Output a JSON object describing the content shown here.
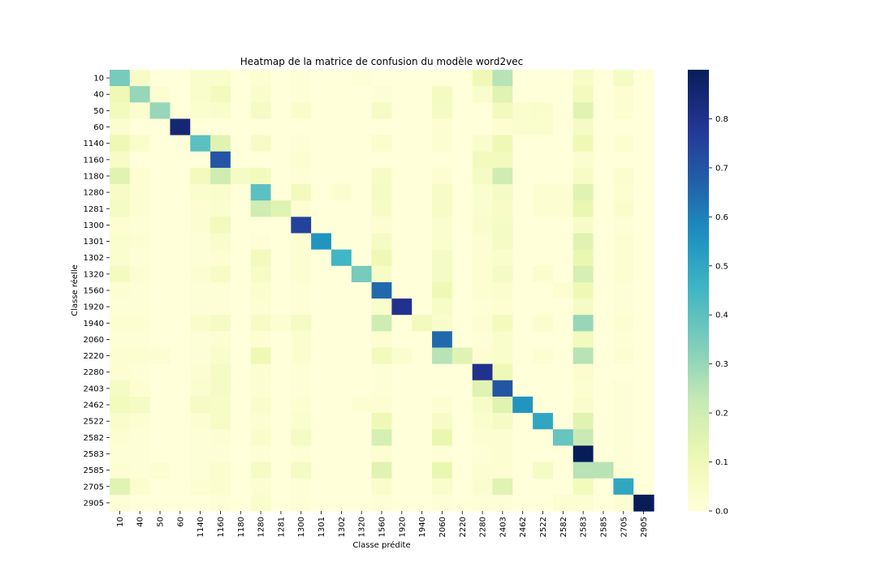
{
  "chart_data": {
    "type": "heatmap",
    "title": "Heatmap de la matrice de confusion du modèle word2vec",
    "xlabel": "Classe prédite",
    "ylabel": "Classe réelle",
    "classes": [
      "10",
      "40",
      "50",
      "60",
      "1140",
      "1160",
      "1180",
      "1280",
      "1281",
      "1300",
      "1301",
      "1302",
      "1320",
      "1560",
      "1920",
      "1940",
      "2060",
      "2220",
      "2280",
      "2403",
      "2462",
      "2522",
      "2582",
      "2583",
      "2585",
      "2705",
      "2905"
    ],
    "x_tick_labels": [
      "10",
      "40",
      "50",
      "60",
      "1140",
      "1160",
      "1180",
      "1280",
      "1281",
      "1300",
      "1301",
      "1302",
      "1320",
      "1560",
      "1920",
      "1940",
      "2060",
      "2220",
      "2280",
      "2403",
      "2462",
      "2522",
      "2582",
      "2583",
      "2585",
      "2705",
      "2905"
    ],
    "y_tick_labels": [
      "10",
      "40",
      "50",
      "60",
      "1140",
      "1160",
      "1180",
      "1280",
      "1281",
      "1300",
      "1301",
      "1302",
      "1320",
      "1560",
      "1920",
      "1940",
      "2060",
      "2220",
      "2280",
      "2403",
      "2462",
      "2522",
      "2582",
      "2583",
      "2585",
      "2705",
      "2905"
    ],
    "colormap": "YlGnBu",
    "color_range": [
      0.0,
      0.9
    ],
    "colorbar_ticks": [
      "0.0",
      "0.1",
      "0.2",
      "0.3",
      "0.4",
      "0.5",
      "0.6",
      "0.7",
      "0.8"
    ],
    "colorbar_tick_values": [
      0.0,
      0.1,
      0.2,
      0.3,
      0.4,
      0.5,
      0.6,
      0.7,
      0.8
    ],
    "matrix": [
      [
        0.35,
        0.05,
        0,
        0,
        0.04,
        0.04,
        0,
        0.02,
        0,
        0.01,
        0,
        0,
        0.01,
        0,
        0,
        0,
        0,
        0,
        0.1,
        0.25,
        0,
        0,
        0,
        0.05,
        0,
        0.06,
        0
      ],
      [
        0.1,
        0.3,
        0.02,
        0,
        0.04,
        0.08,
        0,
        0.04,
        0,
        0.01,
        0,
        0,
        0,
        0.01,
        0,
        0,
        0.07,
        0,
        0.04,
        0.15,
        0,
        0,
        0,
        0.08,
        0,
        0.02,
        0
      ],
      [
        0.08,
        0.03,
        0.3,
        0,
        0.03,
        0.04,
        0,
        0.06,
        0,
        0.04,
        0,
        0,
        0,
        0.06,
        0,
        0,
        0.06,
        0,
        0,
        0.08,
        0.03,
        0.04,
        0,
        0.15,
        0,
        0.02,
        0
      ],
      [
        0.03,
        0,
        0,
        0.85,
        0,
        0,
        0,
        0,
        0,
        0,
        0,
        0,
        0,
        0,
        0,
        0,
        0.02,
        0,
        0,
        0.02,
        0.03,
        0.03,
        0,
        0.06,
        0,
        0,
        0
      ],
      [
        0.1,
        0.04,
        0,
        0,
        0.4,
        0.15,
        0,
        0.05,
        0,
        0.01,
        0,
        0,
        0,
        0.03,
        0,
        0,
        0.02,
        0,
        0.04,
        0.1,
        0,
        0,
        0,
        0.1,
        0,
        0.02,
        0
      ],
      [
        0.05,
        0,
        0,
        0,
        0,
        0.7,
        0,
        0,
        0,
        0.02,
        0,
        0,
        0,
        0,
        0,
        0,
        0,
        0,
        0.08,
        0.08,
        0,
        0,
        0,
        0.03,
        0,
        0,
        0
      ],
      [
        0.15,
        0.02,
        0,
        0,
        0.08,
        0.2,
        0.06,
        0.08,
        0,
        0.01,
        0,
        0,
        0,
        0.05,
        0,
        0,
        0.02,
        0,
        0.06,
        0.2,
        0,
        0,
        0,
        0.05,
        0,
        0.03,
        0
      ],
      [
        0.05,
        0.02,
        0,
        0,
        0.03,
        0.04,
        0,
        0.4,
        0,
        0.08,
        0,
        0.03,
        0,
        0.06,
        0,
        0,
        0.05,
        0,
        0.03,
        0.06,
        0,
        0.02,
        0.02,
        0.15,
        0,
        0.02,
        0
      ],
      [
        0.06,
        0.02,
        0,
        0,
        0.02,
        0.03,
        0,
        0.2,
        0.15,
        0.02,
        0,
        0,
        0,
        0.05,
        0,
        0,
        0.05,
        0,
        0.03,
        0.05,
        0,
        0.02,
        0.02,
        0.12,
        0,
        0.04,
        0
      ],
      [
        0.02,
        0.01,
        0,
        0,
        0.02,
        0.08,
        0,
        0,
        0,
        0.75,
        0,
        0,
        0,
        0.02,
        0,
        0,
        0.03,
        0,
        0.04,
        0.06,
        0,
        0,
        0,
        0.05,
        0,
        0.01,
        0
      ],
      [
        0.03,
        0.02,
        0,
        0,
        0.01,
        0.04,
        0,
        0.01,
        0,
        0.02,
        0.55,
        0,
        0,
        0.06,
        0,
        0,
        0.03,
        0,
        0.02,
        0.06,
        0,
        0,
        0,
        0.15,
        0,
        0.02,
        0
      ],
      [
        0.03,
        0.01,
        0,
        0,
        0.01,
        0.02,
        0,
        0.08,
        0,
        0.02,
        0,
        0.45,
        0,
        0.1,
        0,
        0,
        0.06,
        0,
        0.02,
        0.04,
        0,
        0,
        0,
        0.12,
        0,
        0.02,
        0
      ],
      [
        0.07,
        0.02,
        0,
        0,
        0.02,
        0.05,
        0,
        0.05,
        0,
        0.02,
        0,
        0,
        0.35,
        0.05,
        0,
        0,
        0.06,
        0,
        0.02,
        0.06,
        0,
        0.03,
        0,
        0.18,
        0,
        0.02,
        0
      ],
      [
        0.02,
        0.01,
        0,
        0,
        0.01,
        0.01,
        0,
        0.03,
        0,
        0.01,
        0,
        0,
        0,
        0.65,
        0,
        0,
        0.1,
        0,
        0.02,
        0.03,
        0,
        0,
        0.02,
        0.1,
        0,
        0.01,
        0
      ],
      [
        0.01,
        0.01,
        0,
        0,
        0.01,
        0.01,
        0,
        0.02,
        0,
        0.01,
        0,
        0,
        0,
        0.04,
        0.8,
        0,
        0.05,
        0,
        0.01,
        0.02,
        0,
        0,
        0,
        0.06,
        0,
        0.01,
        0
      ],
      [
        0.02,
        0.02,
        0,
        0,
        0.04,
        0.06,
        0,
        0.05,
        0.02,
        0.06,
        0,
        0,
        0,
        0.2,
        0,
        0.08,
        0.04,
        0,
        0.02,
        0.08,
        0,
        0.03,
        0,
        0.3,
        0,
        0.02,
        0
      ],
      [
        0.01,
        0.01,
        0,
        0,
        0.01,
        0.02,
        0,
        0.02,
        0,
        0.03,
        0,
        0,
        0,
        0.02,
        0,
        0,
        0.65,
        0,
        0.01,
        0.04,
        0,
        0,
        0,
        0.08,
        0,
        0.01,
        0
      ],
      [
        0.02,
        0.02,
        0.02,
        0,
        0.01,
        0.04,
        0,
        0.1,
        0,
        0.03,
        0,
        0,
        0,
        0.08,
        0.03,
        0,
        0.25,
        0.15,
        0.02,
        0.04,
        0,
        0.02,
        0,
        0.25,
        0,
        0.02,
        0
      ],
      [
        0.02,
        0.01,
        0,
        0,
        0.02,
        0.06,
        0,
        0.02,
        0,
        0.01,
        0,
        0,
        0,
        0.01,
        0,
        0,
        0,
        0,
        0.8,
        0.1,
        0,
        0,
        0,
        0.03,
        0,
        0,
        0
      ],
      [
        0.06,
        0.02,
        0,
        0,
        0.03,
        0.06,
        0,
        0.02,
        0,
        0.01,
        0,
        0,
        0,
        0.01,
        0,
        0,
        0,
        0,
        0.15,
        0.7,
        0,
        0,
        0,
        0.02,
        0,
        0.01,
        0
      ],
      [
        0.08,
        0.06,
        0,
        0,
        0.06,
        0.05,
        0,
        0.04,
        0,
        0.02,
        0,
        0,
        0.02,
        0.02,
        0,
        0,
        0.02,
        0,
        0.05,
        0.15,
        0.55,
        0,
        0,
        0.04,
        0,
        0.01,
        0
      ],
      [
        0.04,
        0.02,
        0,
        0,
        0.02,
        0.05,
        0,
        0.02,
        0,
        0.03,
        0,
        0,
        0,
        0.1,
        0,
        0,
        0.05,
        0,
        0.03,
        0.06,
        0,
        0.5,
        0,
        0.15,
        0,
        0.01,
        0
      ],
      [
        0.02,
        0.01,
        0,
        0,
        0.01,
        0.02,
        0,
        0.04,
        0,
        0.06,
        0,
        0,
        0,
        0.18,
        0,
        0,
        0.12,
        0,
        0.02,
        0.02,
        0,
        0,
        0.38,
        0.22,
        0,
        0.01,
        0
      ],
      [
        0.01,
        0.01,
        0,
        0,
        0.01,
        0.01,
        0,
        0.01,
        0,
        0.01,
        0,
        0,
        0,
        0.02,
        0,
        0,
        0.01,
        0,
        0.01,
        0.02,
        0,
        0,
        0,
        0.9,
        0,
        0.01,
        0
      ],
      [
        0.02,
        0.01,
        0.02,
        0,
        0.01,
        0.03,
        0,
        0.06,
        0,
        0.06,
        0,
        0,
        0,
        0.15,
        0,
        0,
        0.12,
        0,
        0.02,
        0.02,
        0,
        0.06,
        0,
        0.25,
        0.25,
        0.01,
        0
      ],
      [
        0.15,
        0.03,
        0,
        0,
        0.02,
        0.03,
        0,
        0.02,
        0,
        0.01,
        0,
        0,
        0,
        0.04,
        0,
        0,
        0.04,
        0,
        0.03,
        0.15,
        0,
        0,
        0,
        0.08,
        0,
        0.5,
        0
      ],
      [
        0.01,
        0,
        0,
        0,
        0,
        0.01,
        0,
        0.04,
        0,
        0.01,
        0,
        0,
        0,
        0.01,
        0,
        0,
        0.01,
        0,
        0.01,
        0.01,
        0,
        0,
        0.02,
        0.02,
        0,
        0.02,
        0.9
      ]
    ]
  }
}
